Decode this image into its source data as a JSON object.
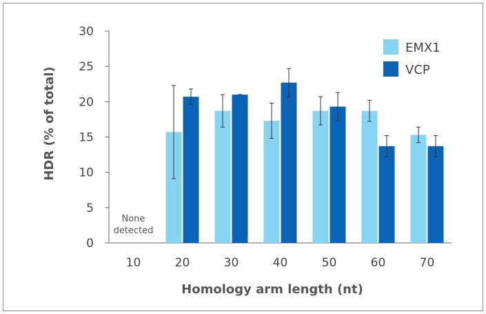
{
  "chart_data": {
    "type": "bar",
    "xlabel": "Homology arm length (nt)",
    "ylabel": "HDR (% of total)",
    "categories": [
      "10",
      "20",
      "30",
      "40",
      "50",
      "60",
      "70"
    ],
    "ylim": [
      0,
      30
    ],
    "yticks": [
      0,
      5,
      10,
      15,
      20,
      25,
      30
    ],
    "grid": false,
    "legend_position": "top-right",
    "series": [
      {
        "name": "EMX1",
        "color": "#86d3f2",
        "values": [
          null,
          15.7,
          18.7,
          17.3,
          18.7,
          18.7,
          15.3
        ],
        "errors": [
          null,
          6.6,
          2.3,
          2.5,
          2.0,
          1.5,
          1.1
        ]
      },
      {
        "name": "VCP",
        "color": "#0b63b6",
        "values": [
          null,
          20.7,
          21.0,
          22.7,
          19.3,
          13.7,
          13.7
        ],
        "errors": [
          null,
          1.1,
          0.0,
          2.0,
          2.0,
          1.5,
          1.5
        ]
      }
    ],
    "annotations": [
      {
        "category": "10",
        "lines": [
          "None",
          "detected"
        ]
      }
    ]
  }
}
